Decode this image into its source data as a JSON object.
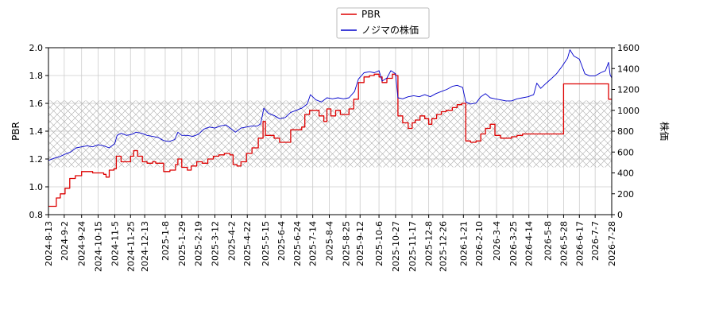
{
  "chart_data": {
    "type": "line",
    "legend": {
      "placement": "top-center",
      "entries": [
        "PBR",
        "ノジマの株価"
      ]
    },
    "left_axis": {
      "label": "PBR",
      "range": [
        0.8,
        2.0
      ],
      "ticks": [
        "0.8",
        "1.0",
        "1.2",
        "1.4",
        "1.6",
        "1.8",
        "2.0"
      ]
    },
    "right_axis": {
      "label": "株価",
      "range": [
        0,
        1600
      ],
      "ticks": [
        "0",
        "200",
        "400",
        "600",
        "800",
        "1000",
        "1200",
        "1400",
        "1600"
      ]
    },
    "x_axis": {
      "range": [
        "2024-08-13",
        "2026-07-28"
      ],
      "ticks": [
        "2024-8-13",
        "2024-9-2",
        "2024-9-24",
        "2024-10-15",
        "2024-11-5",
        "2024-11-25",
        "2024-12-13",
        "2025-1-8",
        "2025-1-29",
        "2025-2-19",
        "2025-3-12",
        "2025-4-2",
        "2025-4-22",
        "2025-5-15",
        "2025-6-4",
        "2025-6-24",
        "2025-7-14",
        "2025-8-4",
        "2025-8-25",
        "2025-9-12",
        "2025-10-6",
        "2025-10-27",
        "2025-11-17",
        "2025-12-8",
        "2025-12-26",
        "2026-1-21",
        "2026-2-10",
        "2026-3-4",
        "2026-3-25",
        "2026-4-14",
        "2026-5-8",
        "2026-5-28",
        "2026-6-17",
        "2026-7-7",
        "2026-7-28"
      ]
    },
    "grid": true,
    "hatched_band": {
      "axis": "left",
      "from": 1.14,
      "to": 1.62
    },
    "series": [
      {
        "name": "PBR",
        "axis": "left",
        "color": "#dd0000",
        "points": [
          [
            "2024-08-13",
            0.86
          ],
          [
            "2024-08-20",
            0.86
          ],
          [
            "2024-08-23",
            0.92
          ],
          [
            "2024-08-28",
            0.95
          ],
          [
            "2024-09-03",
            0.99
          ],
          [
            "2024-09-09",
            1.06
          ],
          [
            "2024-09-16",
            1.08
          ],
          [
            "2024-09-24",
            1.11
          ],
          [
            "2024-10-01",
            1.11
          ],
          [
            "2024-10-08",
            1.1
          ],
          [
            "2024-10-15",
            1.1
          ],
          [
            "2024-10-22",
            1.09
          ],
          [
            "2024-10-25",
            1.07
          ],
          [
            "2024-10-29",
            1.12
          ],
          [
            "2024-11-04",
            1.13
          ],
          [
            "2024-11-07",
            1.22
          ],
          [
            "2024-11-13",
            1.18
          ],
          [
            "2024-11-20",
            1.18
          ],
          [
            "2024-11-25",
            1.22
          ],
          [
            "2024-11-29",
            1.26
          ],
          [
            "2024-12-04",
            1.22
          ],
          [
            "2024-12-10",
            1.18
          ],
          [
            "2024-12-16",
            1.17
          ],
          [
            "2024-12-23",
            1.18
          ],
          [
            "2024-12-27",
            1.17
          ],
          [
            "2025-01-06",
            1.11
          ],
          [
            "2025-01-14",
            1.12
          ],
          [
            "2025-01-21",
            1.16
          ],
          [
            "2025-01-24",
            1.2
          ],
          [
            "2025-01-29",
            1.14
          ],
          [
            "2025-02-05",
            1.12
          ],
          [
            "2025-02-10",
            1.15
          ],
          [
            "2025-02-17",
            1.18
          ],
          [
            "2025-02-24",
            1.17
          ],
          [
            "2025-03-03",
            1.2
          ],
          [
            "2025-03-10",
            1.22
          ],
          [
            "2025-03-17",
            1.23
          ],
          [
            "2025-03-24",
            1.24
          ],
          [
            "2025-03-31",
            1.23
          ],
          [
            "2025-04-04",
            1.16
          ],
          [
            "2025-04-09",
            1.15
          ],
          [
            "2025-04-14",
            1.18
          ],
          [
            "2025-04-21",
            1.24
          ],
          [
            "2025-04-28",
            1.28
          ],
          [
            "2025-05-06",
            1.35
          ],
          [
            "2025-05-12",
            1.47
          ],
          [
            "2025-05-15",
            1.37
          ],
          [
            "2025-05-20",
            1.37
          ],
          [
            "2025-05-26",
            1.35
          ],
          [
            "2025-06-02",
            1.32
          ],
          [
            "2025-06-09",
            1.32
          ],
          [
            "2025-06-16",
            1.41
          ],
          [
            "2025-06-23",
            1.41
          ],
          [
            "2025-06-30",
            1.43
          ],
          [
            "2025-07-04",
            1.52
          ],
          [
            "2025-07-10",
            1.55
          ],
          [
            "2025-07-16",
            1.55
          ],
          [
            "2025-07-22",
            1.51
          ],
          [
            "2025-07-28",
            1.47
          ],
          [
            "2025-08-01",
            1.56
          ],
          [
            "2025-08-06",
            1.51
          ],
          [
            "2025-08-12",
            1.55
          ],
          [
            "2025-08-18",
            1.52
          ],
          [
            "2025-08-25",
            1.52
          ],
          [
            "2025-08-29",
            1.56
          ],
          [
            "2025-09-04",
            1.63
          ],
          [
            "2025-09-10",
            1.75
          ],
          [
            "2025-09-17",
            1.79
          ],
          [
            "2025-09-24",
            1.8
          ],
          [
            "2025-09-30",
            1.81
          ],
          [
            "2025-10-06",
            1.79
          ],
          [
            "2025-10-10",
            1.75
          ],
          [
            "2025-10-16",
            1.78
          ],
          [
            "2025-10-23",
            1.81
          ],
          [
            "2025-10-27",
            1.8
          ],
          [
            "2025-10-30",
            1.51
          ],
          [
            "2025-11-05",
            1.46
          ],
          [
            "2025-11-12",
            1.42
          ],
          [
            "2025-11-17",
            1.46
          ],
          [
            "2025-11-21",
            1.48
          ],
          [
            "2025-11-27",
            1.51
          ],
          [
            "2025-12-03",
            1.49
          ],
          [
            "2025-12-08",
            1.45
          ],
          [
            "2025-12-12",
            1.49
          ],
          [
            "2025-12-18",
            1.52
          ],
          [
            "2025-12-24",
            1.54
          ],
          [
            "2025-12-30",
            1.55
          ],
          [
            "2026-01-07",
            1.57
          ],
          [
            "2026-01-13",
            1.59
          ],
          [
            "2026-01-19",
            1.6
          ],
          [
            "2026-01-24",
            1.33
          ],
          [
            "2026-01-30",
            1.32
          ],
          [
            "2026-02-06",
            1.33
          ],
          [
            "2026-02-12",
            1.38
          ],
          [
            "2026-02-18",
            1.42
          ],
          [
            "2026-02-24",
            1.45
          ],
          [
            "2026-03-02",
            1.37
          ],
          [
            "2026-03-09",
            1.35
          ],
          [
            "2026-03-16",
            1.35
          ],
          [
            "2026-03-23",
            1.36
          ],
          [
            "2026-03-30",
            1.37
          ],
          [
            "2026-04-06",
            1.38
          ],
          [
            "2026-04-14",
            1.38
          ],
          [
            "2026-04-21",
            1.38
          ],
          [
            "2026-04-28",
            1.38
          ],
          [
            "2026-05-05",
            1.38
          ],
          [
            "2026-05-12",
            1.38
          ],
          [
            "2026-05-19",
            1.38
          ],
          [
            "2026-05-25",
            1.38
          ],
          [
            "2026-05-28",
            1.74
          ],
          [
            "2026-06-05",
            1.74
          ],
          [
            "2026-06-17",
            1.74
          ],
          [
            "2026-06-30",
            1.74
          ],
          [
            "2026-07-10",
            1.74
          ],
          [
            "2026-07-20",
            1.74
          ],
          [
            "2026-07-24",
            1.63
          ],
          [
            "2026-07-28",
            1.63
          ]
        ]
      },
      {
        "name": "ノジマの株価",
        "axis": "right",
        "color": "#0000cc",
        "points": [
          [
            "2024-08-13",
            520
          ],
          [
            "2024-08-20",
            540
          ],
          [
            "2024-08-27",
            555
          ],
          [
            "2024-09-03",
            580
          ],
          [
            "2024-09-10",
            600
          ],
          [
            "2024-09-17",
            640
          ],
          [
            "2024-09-24",
            650
          ],
          [
            "2024-10-01",
            660
          ],
          [
            "2024-10-08",
            650
          ],
          [
            "2024-10-15",
            670
          ],
          [
            "2024-10-22",
            660
          ],
          [
            "2024-10-29",
            640
          ],
          [
            "2024-11-05",
            680
          ],
          [
            "2024-11-08",
            760
          ],
          [
            "2024-11-13",
            780
          ],
          [
            "2024-11-20",
            760
          ],
          [
            "2024-11-27",
            770
          ],
          [
            "2024-12-02",
            790
          ],
          [
            "2024-12-09",
            780
          ],
          [
            "2024-12-16",
            760
          ],
          [
            "2024-12-23",
            750
          ],
          [
            "2024-12-30",
            740
          ],
          [
            "2025-01-06",
            710
          ],
          [
            "2025-01-13",
            700
          ],
          [
            "2025-01-20",
            720
          ],
          [
            "2025-01-24",
            790
          ],
          [
            "2025-01-29",
            760
          ],
          [
            "2025-02-05",
            760
          ],
          [
            "2025-02-12",
            750
          ],
          [
            "2025-02-19",
            770
          ],
          [
            "2025-02-26",
            820
          ],
          [
            "2025-03-05",
            840
          ],
          [
            "2025-03-12",
            830
          ],
          [
            "2025-03-19",
            850
          ],
          [
            "2025-03-26",
            860
          ],
          [
            "2025-04-02",
            820
          ],
          [
            "2025-04-07",
            790
          ],
          [
            "2025-04-14",
            830
          ],
          [
            "2025-04-21",
            840
          ],
          [
            "2025-04-28",
            850
          ],
          [
            "2025-05-05",
            850
          ],
          [
            "2025-05-09",
            870
          ],
          [
            "2025-05-13",
            1020
          ],
          [
            "2025-05-19",
            970
          ],
          [
            "2025-05-26",
            950
          ],
          [
            "2025-06-02",
            920
          ],
          [
            "2025-06-09",
            930
          ],
          [
            "2025-06-16",
            980
          ],
          [
            "2025-06-23",
            1000
          ],
          [
            "2025-06-30",
            1020
          ],
          [
            "2025-07-07",
            1060
          ],
          [
            "2025-07-11",
            1150
          ],
          [
            "2025-07-18",
            1100
          ],
          [
            "2025-07-25",
            1080
          ],
          [
            "2025-08-01",
            1120
          ],
          [
            "2025-08-08",
            1110
          ],
          [
            "2025-08-15",
            1120
          ],
          [
            "2025-08-22",
            1110
          ],
          [
            "2025-08-29",
            1120
          ],
          [
            "2025-09-05",
            1180
          ],
          [
            "2025-09-10",
            1300
          ],
          [
            "2025-09-17",
            1360
          ],
          [
            "2025-09-24",
            1370
          ],
          [
            "2025-09-30",
            1360
          ],
          [
            "2025-10-06",
            1380
          ],
          [
            "2025-10-10",
            1280
          ],
          [
            "2025-10-16",
            1310
          ],
          [
            "2025-10-21",
            1380
          ],
          [
            "2025-10-27",
            1350
          ],
          [
            "2025-10-30",
            1120
          ],
          [
            "2025-11-05",
            1110
          ],
          [
            "2025-11-12",
            1130
          ],
          [
            "2025-11-19",
            1140
          ],
          [
            "2025-11-26",
            1130
          ],
          [
            "2025-12-03",
            1150
          ],
          [
            "2025-12-10",
            1130
          ],
          [
            "2025-12-17",
            1160
          ],
          [
            "2025-12-24",
            1180
          ],
          [
            "2025-12-31",
            1200
          ],
          [
            "2026-01-07",
            1230
          ],
          [
            "2026-01-13",
            1240
          ],
          [
            "2026-01-20",
            1220
          ],
          [
            "2026-01-24",
            1080
          ],
          [
            "2026-01-30",
            1060
          ],
          [
            "2026-02-06",
            1070
          ],
          [
            "2026-02-12",
            1130
          ],
          [
            "2026-02-18",
            1160
          ],
          [
            "2026-02-24",
            1120
          ],
          [
            "2026-03-02",
            1110
          ],
          [
            "2026-03-09",
            1100
          ],
          [
            "2026-03-16",
            1090
          ],
          [
            "2026-03-23",
            1090
          ],
          [
            "2026-03-30",
            1110
          ],
          [
            "2026-04-06",
            1120
          ],
          [
            "2026-04-13",
            1130
          ],
          [
            "2026-04-20",
            1150
          ],
          [
            "2026-04-24",
            1260
          ],
          [
            "2026-04-29",
            1210
          ],
          [
            "2026-05-06",
            1260
          ],
          [
            "2026-05-12",
            1300
          ],
          [
            "2026-05-19",
            1350
          ],
          [
            "2026-05-26",
            1420
          ],
          [
            "2026-06-02",
            1500
          ],
          [
            "2026-06-05",
            1580
          ],
          [
            "2026-06-10",
            1520
          ],
          [
            "2026-06-17",
            1490
          ],
          [
            "2026-06-24",
            1350
          ],
          [
            "2026-06-30",
            1330
          ],
          [
            "2026-07-07",
            1330
          ],
          [
            "2026-07-14",
            1360
          ],
          [
            "2026-07-20",
            1380
          ],
          [
            "2026-07-24",
            1460
          ],
          [
            "2026-07-26",
            1340
          ],
          [
            "2026-07-28",
            1310
          ]
        ]
      }
    ]
  }
}
